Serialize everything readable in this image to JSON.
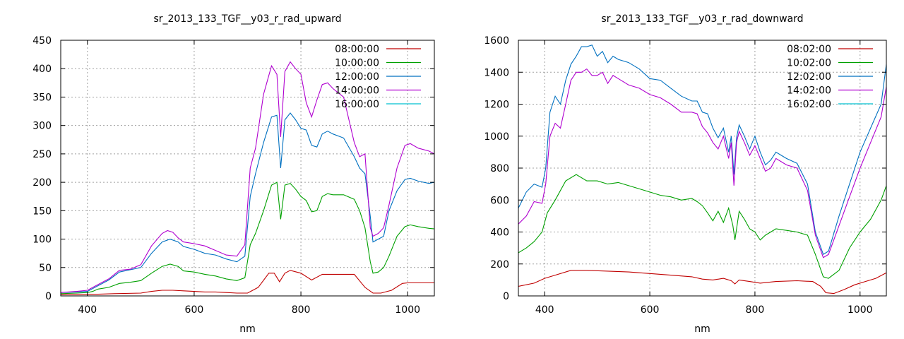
{
  "chart_data": [
    {
      "type": "line",
      "title": "sr_2013_133_TGF__y03_r_rad_upward",
      "xlabel": "nm",
      "ylabel": "",
      "xlim": [
        350,
        1050
      ],
      "ylim": [
        0,
        450
      ],
      "xticks": [
        400,
        600,
        800,
        1000
      ],
      "yticks": [
        0,
        50,
        100,
        150,
        200,
        250,
        300,
        350,
        400,
        450
      ],
      "grid": true,
      "legend_position": "top-right",
      "series": [
        {
          "name": "08:00:00",
          "color": "#c00000",
          "x": [
            350,
            380,
            400,
            420,
            450,
            500,
            520,
            540,
            560,
            580,
            600,
            620,
            640,
            660,
            680,
            700,
            720,
            740,
            750,
            760,
            770,
            780,
            800,
            820,
            840,
            860,
            880,
            900,
            920,
            935,
            950,
            970,
            990,
            1000,
            1020,
            1050
          ],
          "y": [
            2,
            2,
            3,
            3,
            4,
            5,
            8,
            10,
            10,
            9,
            8,
            7,
            7,
            6,
            5,
            5,
            15,
            40,
            40,
            25,
            40,
            45,
            40,
            28,
            38,
            38,
            38,
            38,
            15,
            5,
            5,
            10,
            22,
            23,
            23,
            23
          ]
        },
        {
          "name": "10:00:00",
          "color": "#00a000",
          "x": [
            350,
            380,
            400,
            410,
            420,
            440,
            460,
            480,
            500,
            520,
            540,
            555,
            570,
            580,
            600,
            620,
            640,
            660,
            680,
            695,
            705,
            715,
            730,
            745,
            755,
            762,
            770,
            780,
            790,
            800,
            810,
            820,
            830,
            840,
            850,
            860,
            880,
            900,
            910,
            920,
            930,
            935,
            945,
            955,
            965,
            980,
            995,
            1005,
            1020,
            1040,
            1050
          ],
          "y": [
            4,
            5,
            6,
            8,
            12,
            15,
            22,
            24,
            27,
            40,
            52,
            56,
            52,
            44,
            42,
            38,
            35,
            30,
            27,
            32,
            90,
            110,
            150,
            195,
            200,
            135,
            195,
            198,
            188,
            175,
            168,
            148,
            150,
            175,
            180,
            178,
            178,
            170,
            150,
            120,
            60,
            40,
            42,
            50,
            70,
            105,
            122,
            125,
            122,
            119,
            118
          ]
        },
        {
          "name": "12:00:00",
          "color": "#0070c0",
          "x": [
            350,
            380,
            400,
            420,
            440,
            460,
            480,
            500,
            520,
            540,
            555,
            570,
            580,
            600,
            620,
            640,
            660,
            680,
            695,
            705,
            715,
            730,
            745,
            755,
            762,
            770,
            780,
            790,
            800,
            810,
            820,
            830,
            840,
            850,
            860,
            880,
            900,
            910,
            920,
            930,
            935,
            945,
            955,
            965,
            980,
            995,
            1005,
            1020,
            1040,
            1050
          ],
          "y": [
            6,
            7,
            8,
            18,
            28,
            42,
            46,
            50,
            75,
            95,
            100,
            95,
            87,
            82,
            75,
            72,
            65,
            60,
            70,
            175,
            215,
            270,
            315,
            318,
            225,
            310,
            322,
            310,
            295,
            292,
            265,
            262,
            285,
            290,
            285,
            278,
            245,
            225,
            215,
            140,
            95,
            100,
            105,
            150,
            185,
            205,
            207,
            202,
            198,
            200
          ]
        },
        {
          "name": "14:00:00",
          "color": "#b000d0",
          "x": [
            350,
            380,
            400,
            420,
            440,
            460,
            480,
            500,
            520,
            540,
            550,
            560,
            570,
            580,
            600,
            620,
            640,
            660,
            680,
            695,
            705,
            715,
            730,
            745,
            755,
            762,
            770,
            780,
            790,
            800,
            810,
            820,
            830,
            840,
            850,
            860,
            880,
            900,
            910,
            920,
            930,
            935,
            945,
            955,
            965,
            980,
            995,
            1005,
            1020,
            1040,
            1050
          ],
          "y": [
            6,
            8,
            10,
            20,
            30,
            45,
            47,
            55,
            88,
            110,
            115,
            112,
            102,
            95,
            92,
            88,
            80,
            72,
            70,
            90,
            225,
            260,
            355,
            405,
            390,
            280,
            395,
            412,
            400,
            390,
            340,
            315,
            345,
            372,
            375,
            365,
            350,
            270,
            245,
            250,
            120,
            105,
            110,
            120,
            160,
            225,
            265,
            268,
            260,
            255,
            250
          ]
        },
        {
          "name": "16:00:00",
          "color": "#00c0d0",
          "x": [],
          "y": []
        }
      ]
    },
    {
      "type": "line",
      "title": "sr_2013_133_TGF__y03_r_rad_downward",
      "xlabel": "nm",
      "ylabel": "",
      "xlim": [
        350,
        1050
      ],
      "ylim": [
        0,
        1600
      ],
      "xticks": [
        400,
        600,
        800,
        1000
      ],
      "yticks": [
        0,
        200,
        400,
        600,
        800,
        1000,
        1200,
        1400,
        1600
      ],
      "grid": true,
      "legend_position": "top-right",
      "series": [
        {
          "name": "08:02:00",
          "color": "#c00000",
          "x": [
            350,
            380,
            400,
            420,
            450,
            480,
            520,
            560,
            600,
            640,
            680,
            700,
            720,
            740,
            755,
            762,
            770,
            790,
            810,
            840,
            880,
            910,
            925,
            935,
            950,
            970,
            990,
            1010,
            1030,
            1050
          ],
          "y": [
            60,
            80,
            110,
            130,
            160,
            160,
            155,
            150,
            140,
            130,
            120,
            105,
            100,
            110,
            95,
            75,
            100,
            90,
            80,
            90,
            95,
            90,
            60,
            20,
            15,
            40,
            70,
            90,
            110,
            145
          ]
        },
        {
          "name": "10:02:00",
          "color": "#00a000",
          "x": [
            350,
            365,
            380,
            395,
            405,
            420,
            440,
            460,
            480,
            500,
            520,
            540,
            560,
            580,
            600,
            620,
            640,
            660,
            680,
            690,
            700,
            710,
            720,
            730,
            740,
            750,
            758,
            762,
            770,
            780,
            790,
            800,
            810,
            820,
            840,
            860,
            880,
            900,
            915,
            930,
            940,
            960,
            980,
            1000,
            1020,
            1040,
            1050
          ],
          "y": [
            270,
            300,
            340,
            400,
            520,
            600,
            720,
            760,
            720,
            720,
            700,
            710,
            690,
            670,
            650,
            630,
            620,
            600,
            610,
            590,
            565,
            520,
            470,
            530,
            460,
            550,
            440,
            350,
            530,
            480,
            420,
            400,
            350,
            380,
            420,
            410,
            400,
            380,
            260,
            120,
            110,
            160,
            300,
            400,
            480,
            600,
            690
          ]
        },
        {
          "name": "12:02:00",
          "color": "#0070c0",
          "x": [
            350,
            365,
            380,
            395,
            402,
            410,
            420,
            430,
            440,
            450,
            460,
            470,
            480,
            490,
            500,
            510,
            520,
            530,
            540,
            560,
            580,
            600,
            620,
            640,
            660,
            680,
            690,
            700,
            710,
            720,
            730,
            740,
            750,
            755,
            760,
            765,
            770,
            780,
            790,
            800,
            810,
            820,
            830,
            840,
            850,
            860,
            880,
            900,
            915,
            930,
            940,
            960,
            980,
            1000,
            1020,
            1040,
            1050
          ],
          "y": [
            550,
            650,
            700,
            680,
            800,
            1150,
            1250,
            1200,
            1350,
            1450,
            1500,
            1560,
            1560,
            1570,
            1500,
            1530,
            1460,
            1500,
            1480,
            1460,
            1420,
            1360,
            1350,
            1300,
            1250,
            1220,
            1220,
            1150,
            1140,
            1050,
            990,
            1050,
            900,
            1000,
            760,
            990,
            1070,
            1000,
            920,
            1000,
            900,
            820,
            850,
            900,
            880,
            860,
            830,
            700,
            400,
            260,
            280,
            500,
            700,
            900,
            1050,
            1200,
            1450
          ]
        },
        {
          "name": "14:02:00",
          "color": "#b000d0",
          "x": [
            350,
            365,
            380,
            395,
            402,
            410,
            420,
            430,
            440,
            450,
            460,
            470,
            480,
            490,
            500,
            510,
            520,
            530,
            540,
            560,
            580,
            600,
            620,
            640,
            660,
            680,
            690,
            700,
            710,
            720,
            730,
            740,
            750,
            755,
            760,
            765,
            770,
            780,
            790,
            800,
            810,
            820,
            830,
            840,
            850,
            860,
            880,
            900,
            915,
            930,
            940,
            960,
            980,
            1000,
            1020,
            1040,
            1050
          ],
          "y": [
            450,
            500,
            590,
            580,
            700,
            1000,
            1080,
            1050,
            1200,
            1350,
            1400,
            1400,
            1420,
            1380,
            1380,
            1400,
            1330,
            1380,
            1360,
            1320,
            1300,
            1260,
            1240,
            1200,
            1150,
            1150,
            1140,
            1060,
            1020,
            960,
            920,
            1000,
            860,
            960,
            690,
            960,
            1030,
            960,
            880,
            940,
            860,
            780,
            800,
            860,
            840,
            820,
            800,
            660,
            380,
            240,
            260,
            440,
            620,
            800,
            960,
            1120,
            1310
          ]
        },
        {
          "name": "16:02:00",
          "color": "#00c0d0",
          "x": [],
          "y": []
        }
      ]
    }
  ]
}
